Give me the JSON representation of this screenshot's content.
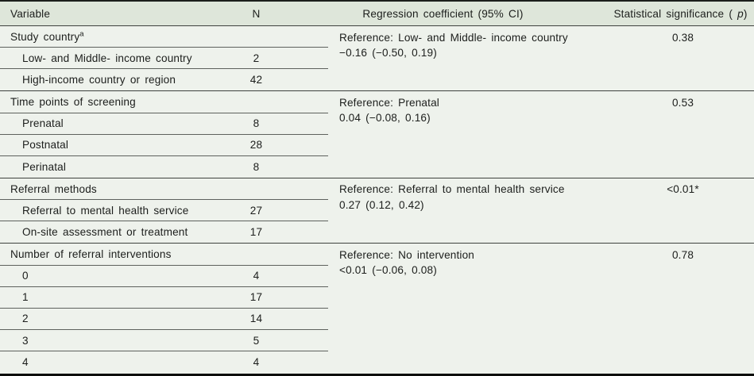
{
  "colors": {
    "header_bg": "#dee6da",
    "body_bg": "#eef2ec",
    "rule_strong": "#1b1f1b",
    "rule_section": "#3e423e",
    "rule_row": "#5d615d",
    "text": "#1c1e1c"
  },
  "table": {
    "header": {
      "variable": "Variable",
      "n": "N",
      "regression": "Regression coefficient (95% CI)",
      "significance_prefix": "Statistical significance ( ",
      "significance_p": "p",
      "significance_suffix": ")"
    },
    "sections": [
      {
        "title": "Study country",
        "title_sup": "a",
        "rows": [
          {
            "label": "Low- and Middle- income country",
            "n": "2"
          },
          {
            "label": "High-income country or region",
            "n": "42"
          }
        ],
        "reference": "Reference: Low- and Middle- income country",
        "coefficient": "−0.16 (−0.50, 0.19)",
        "p": "0.38"
      },
      {
        "title": "Time points of screening",
        "title_sup": "",
        "rows": [
          {
            "label": "Prenatal",
            "n": "8"
          },
          {
            "label": "Postnatal",
            "n": "28"
          },
          {
            "label": "Perinatal",
            "n": "8"
          }
        ],
        "reference": "Reference: Prenatal",
        "coefficient": "0.04 (−0.08, 0.16)",
        "p": "0.53"
      },
      {
        "title": "Referral methods",
        "title_sup": "",
        "rows": [
          {
            "label": "Referral to mental health service",
            "n": "27"
          },
          {
            "label": "On-site assessment or treatment",
            "n": "17"
          }
        ],
        "reference": "Reference: Referral to mental health service",
        "coefficient": "0.27 (0.12, 0.42)",
        "p": "<0.01*"
      },
      {
        "title": "Number of referral interventions",
        "title_sup": "",
        "rows": [
          {
            "label": "0",
            "n": "4"
          },
          {
            "label": "1",
            "n": "17"
          },
          {
            "label": "2",
            "n": "14"
          },
          {
            "label": "3",
            "n": "5"
          },
          {
            "label": "4",
            "n": "4"
          }
        ],
        "reference": "Reference: No intervention",
        "coefficient": "<0.01 (−0.06, 0.08)",
        "p": "0.78"
      }
    ]
  }
}
